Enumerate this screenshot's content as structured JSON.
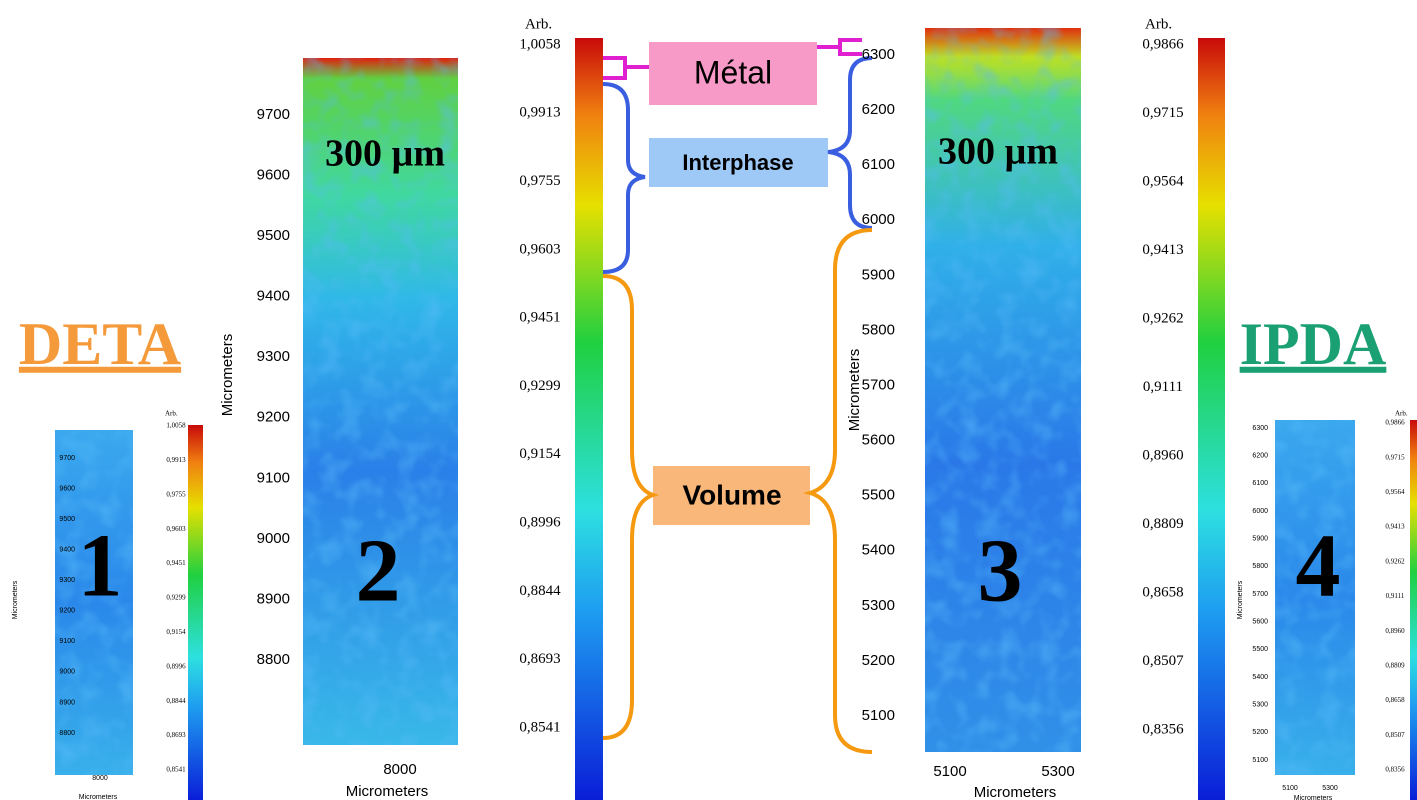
{
  "labels": {
    "deta": "DETA",
    "ipda": "IPDA",
    "metal": "Métal",
    "interphase": "Interphase",
    "volume": "Volume"
  },
  "panels": [
    {
      "number": "1",
      "x_label": "Micrometers",
      "y_label": "Micrometers",
      "x_ticks": [
        "8000"
      ],
      "y_ticks": [
        "9700",
        "9600",
        "9500",
        "9400",
        "9300",
        "9200",
        "9100",
        "9000",
        "8900",
        "8800"
      ],
      "colorbar_title": "Arb.",
      "colorbar_ticks": [
        "1,0058",
        "0,9913",
        "0,9755",
        "0,9603",
        "0,9451",
        "0,9299",
        "0,9154",
        "0,8996",
        "0,8844",
        "0,8693",
        "0,8541"
      ]
    },
    {
      "number": "2",
      "scale": "300 µm",
      "x_label": "Micrometers",
      "y_label": "Micrometers",
      "x_ticks": [
        "8000"
      ],
      "y_ticks": [
        "9700",
        "9600",
        "9500",
        "9400",
        "9300",
        "9200",
        "9100",
        "9000",
        "8900",
        "8800"
      ],
      "colorbar_title": "Arb.",
      "colorbar_ticks": [
        "1,0058",
        "0,9913",
        "0,9755",
        "0,9603",
        "0,9451",
        "0,9299",
        "0,9154",
        "0,8996",
        "0,8844",
        "0,8693",
        "0,8541"
      ]
    },
    {
      "number": "3",
      "scale": "300 µm",
      "x_label": "Micrometers",
      "y_label": "Micrometers",
      "x_ticks": [
        "5100",
        "5300"
      ],
      "y_ticks": [
        "6300",
        "6200",
        "6100",
        "6000",
        "5900",
        "5800",
        "5700",
        "5600",
        "5500",
        "5400",
        "5300",
        "5200",
        "5100"
      ],
      "colorbar_title": "Arb.",
      "colorbar_ticks": [
        "0,9866",
        "0,9715",
        "0,9564",
        "0,9413",
        "0,9262",
        "0,9111",
        "0,8960",
        "0,8809",
        "0,8658",
        "0,8507",
        "0,8356"
      ]
    },
    {
      "number": "4",
      "x_label": "Micrometers",
      "y_label": "Micrometers",
      "x_ticks": [
        "5100",
        "5300"
      ],
      "y_ticks": [
        "6300",
        "6200",
        "6100",
        "6000",
        "5900",
        "5800",
        "5700",
        "5600",
        "5500",
        "5400",
        "5300",
        "5200",
        "5100"
      ],
      "colorbar_title": "Arb.",
      "colorbar_ticks": [
        "0,9866",
        "0,9715",
        "0,9564",
        "0,9413",
        "0,9262",
        "0,9111",
        "0,8960",
        "0,8809",
        "0,8658",
        "0,8507",
        "0,8356"
      ]
    }
  ]
}
